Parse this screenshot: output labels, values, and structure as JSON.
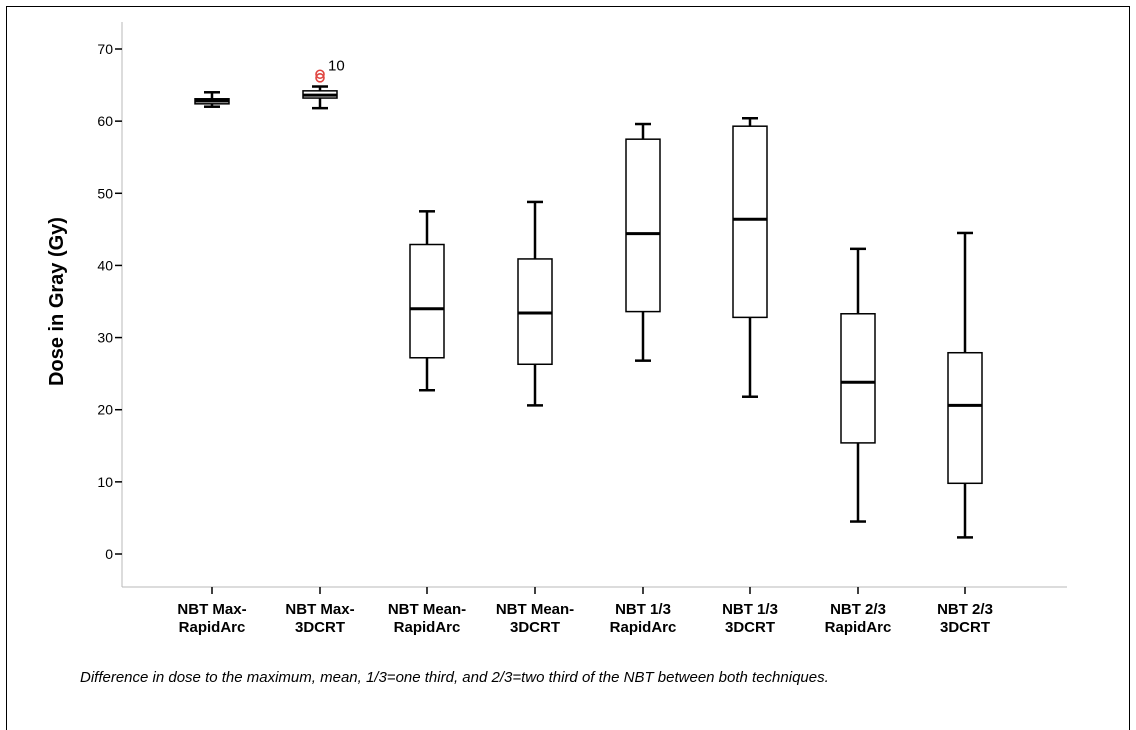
{
  "chart_data": {
    "type": "boxplot",
    "ylabel": "Dose in Gray (Gy)",
    "xlabel": "",
    "ylim": [
      0,
      70
    ],
    "yticks": [
      0,
      10,
      20,
      30,
      40,
      50,
      60,
      70
    ],
    "grid": false,
    "categories": [
      {
        "line1": "NBT Max-",
        "line2": "RapidArc"
      },
      {
        "line1": "NBT Max-",
        "line2": "3DCRT"
      },
      {
        "line1": "NBT Mean-",
        "line2": "RapidArc"
      },
      {
        "line1": "NBT Mean-",
        "line2": "3DCRT"
      },
      {
        "line1": "NBT 1/3",
        "line2": "RapidArc"
      },
      {
        "line1": "NBT 1/3",
        "line2": "3DCRT"
      },
      {
        "line1": "NBT 2/3",
        "line2": "RapidArc"
      },
      {
        "line1": "NBT 2/3",
        "line2": "3DCRT"
      }
    ],
    "boxes": [
      {
        "min": 62.0,
        "q1": 62.4,
        "median": 62.8,
        "q3": 63.1,
        "max": 64.0
      },
      {
        "min": 61.8,
        "q1": 63.2,
        "median": 63.6,
        "q3": 64.2,
        "max": 64.8,
        "outliers": [
          66.0,
          66.5
        ],
        "outlier_label": "10"
      },
      {
        "min": 22.7,
        "q1": 27.2,
        "median": 34.0,
        "q3": 42.9,
        "max": 47.5
      },
      {
        "min": 20.6,
        "q1": 26.3,
        "median": 33.4,
        "q3": 40.9,
        "max": 48.8
      },
      {
        "min": 26.8,
        "q1": 33.6,
        "median": 44.4,
        "q3": 57.5,
        "max": 59.6
      },
      {
        "min": 21.8,
        "q1": 32.8,
        "median": 46.4,
        "q3": 59.3,
        "max": 60.4
      },
      {
        "min": 4.5,
        "q1": 15.4,
        "median": 23.8,
        "q3": 33.3,
        "max": 42.3
      },
      {
        "min": 2.3,
        "q1": 9.8,
        "median": 20.6,
        "q3": 27.9,
        "max": 44.5
      }
    ],
    "outlier_color": "#e0443f"
  },
  "caption": "Difference in dose to the maximum, mean, 1/3=one third, and 2/3=two third of the NBT between both techniques."
}
